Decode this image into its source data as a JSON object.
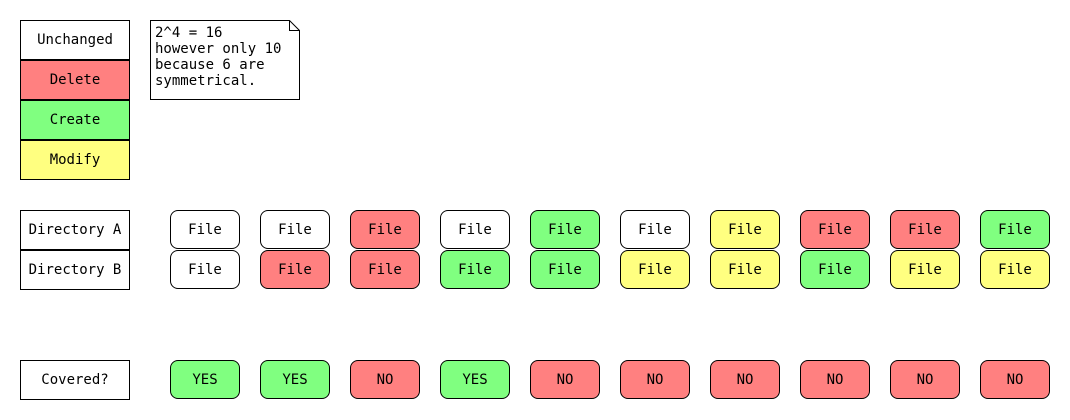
{
  "colors": {
    "unchanged": "#ffffff",
    "delete": "#ff8080",
    "create": "#80ff80",
    "modify": "#ffff80"
  },
  "legend": {
    "unchanged": "Unchanged",
    "delete": "Delete",
    "create": "Create",
    "modify": "Modify"
  },
  "note": {
    "lines": [
      "2^4 = 16",
      "however only 10",
      "because 6 are",
      "symmetrical."
    ]
  },
  "rows": {
    "dir_a_label": "Directory A",
    "dir_b_label": "Directory B",
    "covered_label": "Covered?"
  },
  "columns": [
    {
      "a": {
        "text": "File",
        "state": "unchanged"
      },
      "b": {
        "text": "File",
        "state": "unchanged"
      },
      "covered": {
        "text": "YES",
        "state": "create"
      }
    },
    {
      "a": {
        "text": "File",
        "state": "unchanged"
      },
      "b": {
        "text": "File",
        "state": "delete"
      },
      "covered": {
        "text": "YES",
        "state": "create"
      }
    },
    {
      "a": {
        "text": "File",
        "state": "delete"
      },
      "b": {
        "text": "File",
        "state": "delete"
      },
      "covered": {
        "text": "NO",
        "state": "delete"
      }
    },
    {
      "a": {
        "text": "File",
        "state": "unchanged"
      },
      "b": {
        "text": "File",
        "state": "create"
      },
      "covered": {
        "text": "YES",
        "state": "create"
      }
    },
    {
      "a": {
        "text": "File",
        "state": "create"
      },
      "b": {
        "text": "File",
        "state": "create"
      },
      "covered": {
        "text": "NO",
        "state": "delete"
      }
    },
    {
      "a": {
        "text": "File",
        "state": "unchanged"
      },
      "b": {
        "text": "File",
        "state": "modify"
      },
      "covered": {
        "text": "NO",
        "state": "delete"
      }
    },
    {
      "a": {
        "text": "File",
        "state": "modify"
      },
      "b": {
        "text": "File",
        "state": "modify"
      },
      "covered": {
        "text": "NO",
        "state": "delete"
      }
    },
    {
      "a": {
        "text": "File",
        "state": "delete"
      },
      "b": {
        "text": "File",
        "state": "create"
      },
      "covered": {
        "text": "NO",
        "state": "delete"
      }
    },
    {
      "a": {
        "text": "File",
        "state": "delete"
      },
      "b": {
        "text": "File",
        "state": "modify"
      },
      "covered": {
        "text": "NO",
        "state": "delete"
      }
    },
    {
      "a": {
        "text": "File",
        "state": "create"
      },
      "b": {
        "text": "File",
        "state": "modify"
      },
      "covered": {
        "text": "NO",
        "state": "delete"
      }
    }
  ]
}
